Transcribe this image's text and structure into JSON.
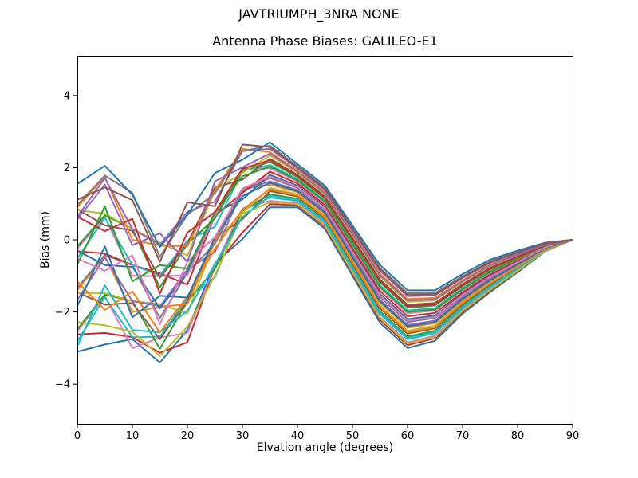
{
  "figure": {
    "suptitle": "JAVTRIUMPH_3NRA NONE"
  },
  "chart_data": {
    "type": "line",
    "title": "Antenna Phase Biases: GALILEO-E1",
    "xlabel": "Elvation angle (degrees)",
    "ylabel": "Bias (mm)",
    "xlim": [
      0,
      90
    ],
    "ylim": [
      -5.1,
      5.1
    ],
    "xticks": [
      0,
      10,
      20,
      30,
      40,
      50,
      60,
      70,
      80,
      90
    ],
    "yticks": [
      -4,
      -2,
      0,
      2,
      4
    ],
    "grid": false,
    "legend": "none",
    "background": "#ffffff",
    "axis_color": "#000000",
    "x": [
      0,
      5,
      10,
      15,
      20,
      25,
      30,
      35,
      40,
      45,
      50,
      55,
      60,
      65,
      70,
      75,
      80,
      85,
      90
    ],
    "series": [
      {
        "color": "#1f77b4",
        "values": [
          -3.1,
          -2.9,
          -2.75,
          -3.4,
          -2.5,
          -0.65,
          0.02,
          0.9,
          0.9,
          0.3,
          -1.0,
          -2.3,
          -3.0,
          -2.8,
          -2.05,
          -1.45,
          -0.9,
          -0.32,
          0
        ]
      },
      {
        "color": "#d62728",
        "values": [
          -2.62,
          -2.58,
          -2.7,
          -3.13,
          -2.84,
          -0.74,
          0.2,
          0.99,
          0.96,
          0.36,
          -0.93,
          -2.22,
          -2.92,
          -2.73,
          -2.0,
          -1.41,
          -0.87,
          -0.31,
          0
        ]
      },
      {
        "color": "#e377c2",
        "values": [
          -2.54,
          -1.56,
          -3.0,
          -2.71,
          -2.58,
          -0.73,
          0.87,
          1.08,
          1.02,
          0.42,
          -0.86,
          -2.14,
          -2.84,
          -2.66,
          -1.94,
          -1.36,
          -0.84,
          -0.3,
          0
        ]
      },
      {
        "color": "#17becf",
        "values": [
          -2.81,
          -1.59,
          -2.7,
          -2.69,
          -1.62,
          -1.04,
          0.81,
          1.17,
          1.08,
          0.48,
          -0.79,
          -2.06,
          -2.76,
          -2.59,
          -1.89,
          -1.32,
          -0.81,
          -0.28,
          0
        ]
      },
      {
        "color": "#2ca02c",
        "values": [
          -2.48,
          -1.52,
          -1.7,
          -3.02,
          -1.71,
          -0.81,
          0.81,
          1.26,
          1.14,
          0.54,
          -0.72,
          -1.98,
          -2.68,
          -2.52,
          -1.83,
          -1.27,
          -0.78,
          -0.27,
          0
        ]
      },
      {
        "color": "#8c564b",
        "values": [
          -1.45,
          -1.8,
          -1.75,
          -2.75,
          -1.7,
          0.05,
          0.57,
          1.35,
          1.2,
          0.6,
          -0.65,
          -1.9,
          -2.6,
          -2.45,
          -1.78,
          -1.23,
          -0.75,
          -0.26,
          0
        ]
      },
      {
        "color": "#bcbd22",
        "values": [
          -1.47,
          -1.48,
          -1.7,
          -1.78,
          -2.04,
          -0.04,
          0.75,
          1.44,
          1.26,
          0.66,
          -0.58,
          -1.82,
          -2.52,
          -2.38,
          -1.72,
          -1.18,
          -0.72,
          -0.25,
          0
        ]
      },
      {
        "color": "#ff7f0e",
        "values": [
          -1.39,
          -0.46,
          -2.0,
          -1.86,
          -1.78,
          -0.03,
          1.42,
          1.53,
          1.32,
          0.72,
          -0.51,
          -1.74,
          -2.44,
          -2.31,
          -1.67,
          -1.14,
          -0.69,
          -0.24,
          0
        ]
      },
      {
        "color": "#9467bd",
        "values": [
          -1.66,
          -0.49,
          -1.7,
          -1.84,
          -0.82,
          -0.34,
          1.36,
          1.62,
          1.38,
          0.78,
          -0.44,
          -1.66,
          -2.36,
          -2.24,
          -1.61,
          -1.09,
          -0.66,
          -0.22,
          0
        ]
      },
      {
        "color": "#7f7f7f",
        "values": [
          -1.33,
          -0.42,
          -0.7,
          -2.17,
          -0.91,
          -0.11,
          1.36,
          1.71,
          1.44,
          0.84,
          -0.37,
          -1.58,
          -2.28,
          -2.17,
          -1.56,
          -1.05,
          -0.63,
          -0.21,
          0
        ]
      },
      {
        "color": "#1f77b4",
        "values": [
          -0.3,
          -0.7,
          -0.75,
          -1.9,
          -0.9,
          0.75,
          1.12,
          1.8,
          1.5,
          0.9,
          -0.3,
          -1.5,
          -2.2,
          -2.1,
          -1.5,
          -1.0,
          -0.6,
          -0.2,
          0
        ]
      },
      {
        "color": "#d62728",
        "values": [
          -0.32,
          -0.38,
          -0.7,
          -0.93,
          -1.24,
          0.67,
          1.3,
          1.89,
          1.56,
          0.96,
          -0.23,
          -1.42,
          -2.12,
          -2.03,
          -1.45,
          -0.96,
          -0.57,
          -0.19,
          0
        ]
      },
      {
        "color": "#e377c2",
        "values": [
          -0.24,
          0.64,
          -1.0,
          -1.01,
          -0.98,
          0.67,
          1.97,
          1.98,
          1.62,
          1.02,
          -0.16,
          -1.34,
          -2.04,
          -1.96,
          -1.39,
          -0.91,
          -0.54,
          -0.18,
          0
        ]
      },
      {
        "color": "#17becf",
        "values": [
          -0.51,
          0.61,
          -0.7,
          -0.99,
          -0.02,
          0.36,
          1.91,
          2.07,
          1.68,
          1.08,
          -0.09,
          -1.26,
          -1.96,
          -1.89,
          -1.34,
          -0.87,
          -0.51,
          -0.16,
          0
        ]
      },
      {
        "color": "#2ca02c",
        "values": [
          -0.18,
          0.68,
          0.3,
          -1.32,
          -0.11,
          0.59,
          1.91,
          2.16,
          1.74,
          1.14,
          -0.02,
          -1.18,
          -1.88,
          -1.82,
          -1.28,
          -0.82,
          -0.48,
          -0.15,
          0
        ]
      },
      {
        "color": "#8c564b",
        "values": [
          0.85,
          0.4,
          0.25,
          -1.05,
          -0.1,
          1.45,
          1.67,
          2.25,
          1.8,
          1.2,
          0.05,
          -1.1,
          -1.8,
          -1.75,
          -1.23,
          -0.78,
          -0.45,
          -0.14,
          0
        ]
      },
      {
        "color": "#bcbd22",
        "values": [
          0.83,
          0.72,
          0.3,
          -0.08,
          -0.44,
          1.37,
          1.85,
          2.34,
          1.86,
          1.26,
          0.12,
          -1.02,
          -1.72,
          -1.68,
          -1.17,
          -0.73,
          -0.42,
          -0.13,
          0
        ]
      },
      {
        "color": "#ff7f0e",
        "values": [
          0.91,
          1.74,
          0.0,
          -0.16,
          -0.18,
          1.37,
          2.52,
          2.43,
          1.92,
          1.32,
          0.19,
          -0.94,
          -1.64,
          -1.61,
          -1.12,
          -0.69,
          -0.39,
          -0.12,
          0
        ]
      },
      {
        "color": "#9467bd",
        "values": [
          0.64,
          1.71,
          0.3,
          -0.14,
          0.78,
          1.06,
          2.46,
          2.52,
          1.98,
          1.38,
          0.26,
          -0.86,
          -1.56,
          -1.54,
          -1.06,
          -0.64,
          -0.36,
          -0.1,
          0
        ]
      },
      {
        "color": "#7f7f7f",
        "values": [
          0.97,
          1.78,
          1.3,
          -0.47,
          0.69,
          1.29,
          2.46,
          2.61,
          2.04,
          1.44,
          0.33,
          -0.78,
          -1.48,
          -1.47,
          -1.01,
          -0.6,
          -0.33,
          -0.09,
          0
        ]
      },
      {
        "color": "#1f77b4",
        "values": [
          1.55,
          2.05,
          1.25,
          -0.2,
          0.7,
          1.85,
          2.22,
          2.7,
          2.1,
          1.5,
          0.4,
          -0.7,
          -1.4,
          -1.4,
          -0.95,
          -0.55,
          -0.3,
          -0.08,
          0
        ]
      },
      {
        "color": "#bcbd22",
        "values": [
          -2.28,
          -2.37,
          -2.55,
          -3.22,
          -2.41,
          -0.99,
          0.72,
          1.04,
          0.99,
          0.39,
          -0.9,
          -2.18,
          -2.88,
          -2.7,
          -1.97,
          -1.39,
          -0.86,
          -0.31,
          0
        ]
      },
      {
        "color": "#17becf",
        "values": [
          -2.95,
          -1.26,
          -2.5,
          -2.56,
          -1.97,
          -0.68,
          0.63,
          1.22,
          1.11,
          0.51,
          -0.76,
          -2.02,
          -2.72,
          -2.56,
          -1.86,
          -1.3,
          -0.8,
          -0.28,
          0
        ]
      },
      {
        "color": "#ff7f0e",
        "values": [
          -1.16,
          -1.94,
          -1.43,
          -2.57,
          -1.57,
          -0.25,
          0.84,
          1.4,
          1.23,
          0.63,
          -0.62,
          -1.86,
          -2.56,
          -2.42,
          -1.75,
          -1.21,
          -0.74,
          -0.26,
          0
        ]
      },
      {
        "color": "#1f77b4",
        "values": [
          -1.83,
          -0.18,
          -2.15,
          -1.55,
          -1.6,
          0.07,
          1.21,
          1.58,
          1.35,
          0.75,
          -0.48,
          -1.7,
          -2.4,
          -2.28,
          -1.64,
          -1.12,
          -0.68,
          -0.23,
          0
        ]
      },
      {
        "color": "#e377c2",
        "values": [
          -0.52,
          -0.86,
          -0.43,
          -2.34,
          -0.61,
          0.07,
          1.42,
          1.76,
          1.47,
          0.87,
          -0.34,
          -1.54,
          -2.24,
          -2.14,
          -1.53,
          -1.03,
          -0.62,
          -0.21,
          0
        ]
      },
      {
        "color": "#2ca02c",
        "values": [
          -0.68,
          0.93,
          -1.15,
          -0.7,
          -0.8,
          0.77,
          1.76,
          2.03,
          1.65,
          1.05,
          -0.13,
          -1.3,
          -2.0,
          -1.93,
          -1.37,
          -0.89,
          -0.53,
          -0.17,
          0
        ]
      },
      {
        "color": "#d62728",
        "values": [
          0.64,
          0.24,
          0.58,
          -1.49,
          0.2,
          0.77,
          1.97,
          2.21,
          1.77,
          1.17,
          0.02,
          -1.14,
          -1.84,
          -1.79,
          -1.26,
          -0.8,
          -0.47,
          -0.15,
          0
        ]
      },
      {
        "color": "#9467bd",
        "values": [
          0.57,
          1.53,
          -0.15,
          0.18,
          -0.61,
          1.62,
          2.01,
          2.39,
          1.89,
          1.29,
          0.16,
          -0.98,
          -1.68,
          -1.65,
          -1.15,
          -0.71,
          -0.41,
          -0.13,
          0
        ]
      },
      {
        "color": "#8c564b",
        "values": [
          1.11,
          1.45,
          1.1,
          -0.61,
          1.04,
          0.93,
          2.64,
          2.57,
          2.01,
          1.41,
          0.3,
          -0.82,
          -1.52,
          -1.51,
          -1.04,
          -0.62,
          -0.35,
          -0.1,
          0
        ]
      }
    ]
  }
}
